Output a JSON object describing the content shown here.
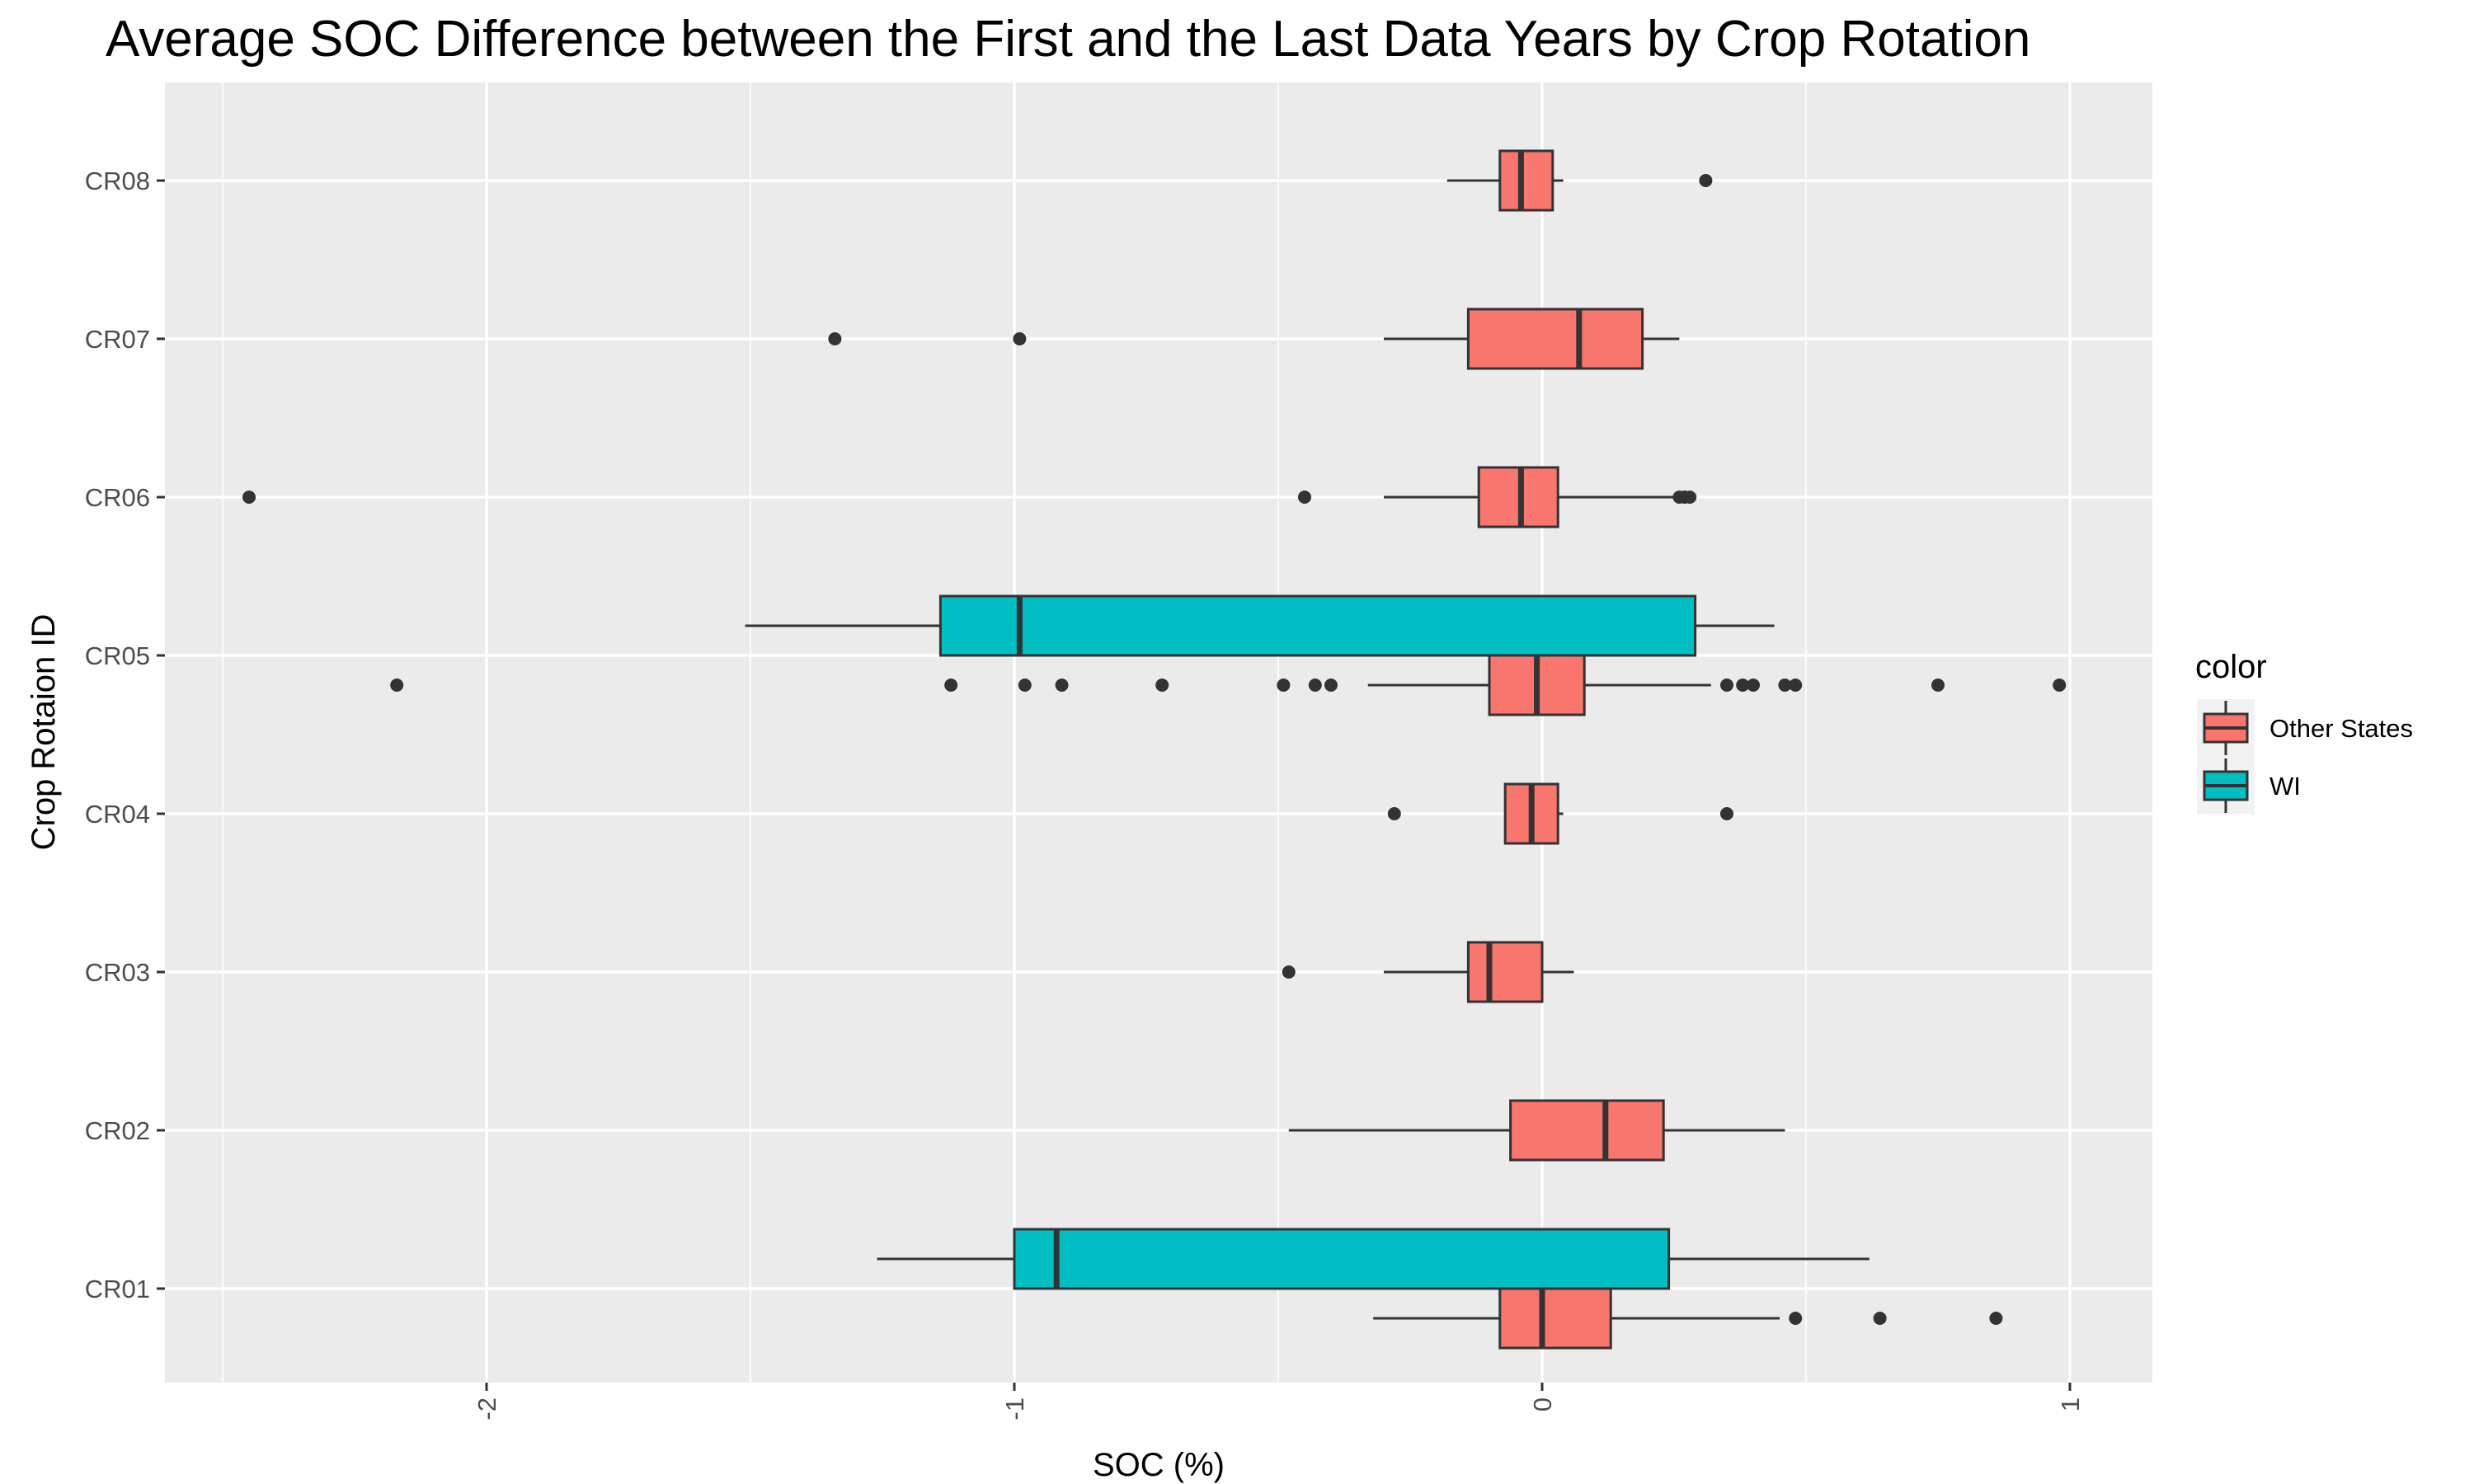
{
  "chart_data": {
    "type": "boxplot",
    "orientation": "horizontal",
    "title": "Average SOC Difference between the First and the Last Data Years by Crop Rotation",
    "xlabel": "SOC (%)",
    "ylabel": "Crop Rotaion ID",
    "xlim": [
      -2.5,
      1.15
    ],
    "xticks": [
      -2,
      -1,
      0,
      1
    ],
    "xtick_labels": [
      "-2",
      "-1",
      "0",
      "1"
    ],
    "x_tick_label_rotation": -90,
    "categories": [
      "CR01",
      "CR02",
      "CR03",
      "CR04",
      "CR05",
      "CR06",
      "CR07",
      "CR08"
    ],
    "grid": true,
    "background": "#ebebeb",
    "legend": {
      "title": "color",
      "position": "right",
      "entries": [
        {
          "name": "Other States",
          "color": "#f8766d"
        },
        {
          "name": "WI",
          "color": "#00bfc4"
        }
      ]
    },
    "series": [
      {
        "name": "Other States",
        "color": "#f8766d",
        "boxes": [
          {
            "category": "CR01",
            "whisker_low": -0.32,
            "q1": -0.08,
            "median": 0.0,
            "q3": 0.13,
            "whisker_high": 0.45,
            "outliers": [
              0.48,
              0.64,
              0.86
            ]
          },
          {
            "category": "CR02",
            "whisker_low": -0.48,
            "q1": -0.06,
            "median": 0.12,
            "q3": 0.23,
            "whisker_high": 0.46,
            "outliers": []
          },
          {
            "category": "CR03",
            "whisker_low": -0.3,
            "q1": -0.14,
            "median": -0.1,
            "q3": 0.0,
            "whisker_high": 0.06,
            "outliers": [
              -0.48
            ]
          },
          {
            "category": "CR04",
            "whisker_low": -0.07,
            "q1": -0.07,
            "median": -0.02,
            "q3": 0.03,
            "whisker_high": 0.04,
            "outliers": [
              -0.28,
              0.35
            ]
          },
          {
            "category": "CR05",
            "whisker_low": -0.33,
            "q1": -0.1,
            "median": -0.01,
            "q3": 0.08,
            "whisker_high": 0.32,
            "outliers": [
              -2.17,
              -1.12,
              -0.98,
              -0.91,
              -0.72,
              -0.49,
              -0.43,
              -0.4,
              0.35,
              0.38,
              0.4,
              0.46,
              0.48,
              0.75,
              0.98
            ]
          },
          {
            "category": "CR06",
            "whisker_low": -0.3,
            "q1": -0.12,
            "median": -0.04,
            "q3": 0.03,
            "whisker_high": 0.25,
            "outliers": [
              -2.45,
              -0.45,
              0.26,
              0.27,
              0.28
            ]
          },
          {
            "category": "CR07",
            "whisker_low": -0.3,
            "q1": -0.14,
            "median": 0.07,
            "q3": 0.19,
            "whisker_high": 0.26,
            "outliers": [
              -1.34,
              -0.99
            ]
          },
          {
            "category": "CR08",
            "whisker_low": -0.18,
            "q1": -0.08,
            "median": -0.04,
            "q3": 0.02,
            "whisker_high": 0.04,
            "outliers": [
              0.31
            ]
          }
        ]
      },
      {
        "name": "WI",
        "color": "#00bfc4",
        "boxes": [
          {
            "category": "CR01",
            "whisker_low": -1.26,
            "q1": -1.0,
            "median": -0.92,
            "q3": 0.24,
            "whisker_high": 0.62,
            "outliers": []
          },
          {
            "category": "CR05",
            "whisker_low": -1.51,
            "q1": -1.14,
            "median": -0.99,
            "q3": 0.29,
            "whisker_high": 0.44,
            "outliers": []
          }
        ]
      }
    ]
  }
}
